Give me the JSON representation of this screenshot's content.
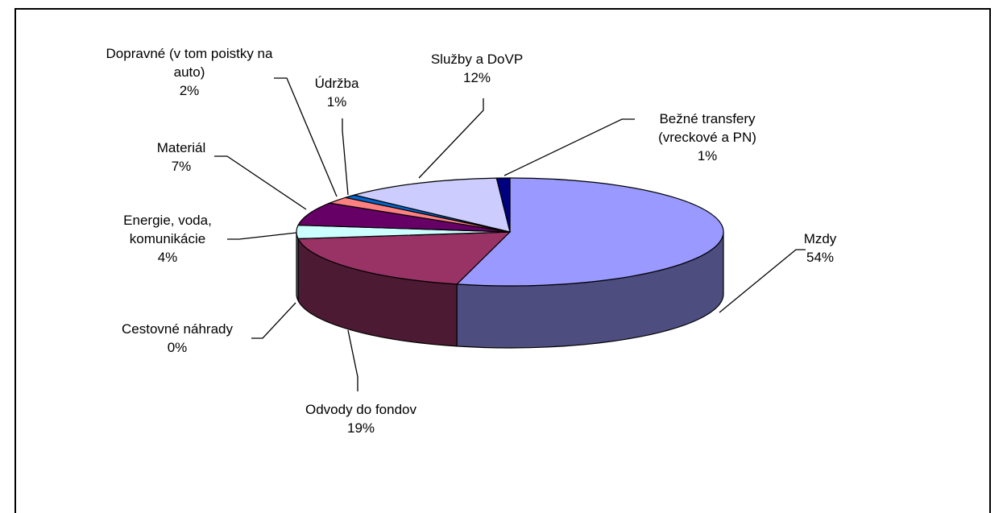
{
  "chart_data": {
    "type": "pie3d",
    "categories": [
      "Mzdy",
      "Odvody do fondov",
      "Cestovné náhrady",
      "Energie, voda, komunikácie",
      "Materiál",
      "Dopravné (v tom poistky na auto)",
      "Údržba",
      "Služby a DoVP",
      "Bežné transfery (vreckové a PN)"
    ],
    "values": [
      54,
      19,
      0,
      4,
      7,
      2,
      1,
      12,
      1
    ],
    "value_labels": [
      "54%",
      "19%",
      "0%",
      "4%",
      "7%",
      "2%",
      "1%",
      "12%",
      "1%"
    ],
    "colors": [
      "#9999ff",
      "#993366",
      "#ffffcc",
      "#ccffff",
      "#660066",
      "#ff8080",
      "#0066cc",
      "#ccccff",
      "#000080"
    ]
  }
}
